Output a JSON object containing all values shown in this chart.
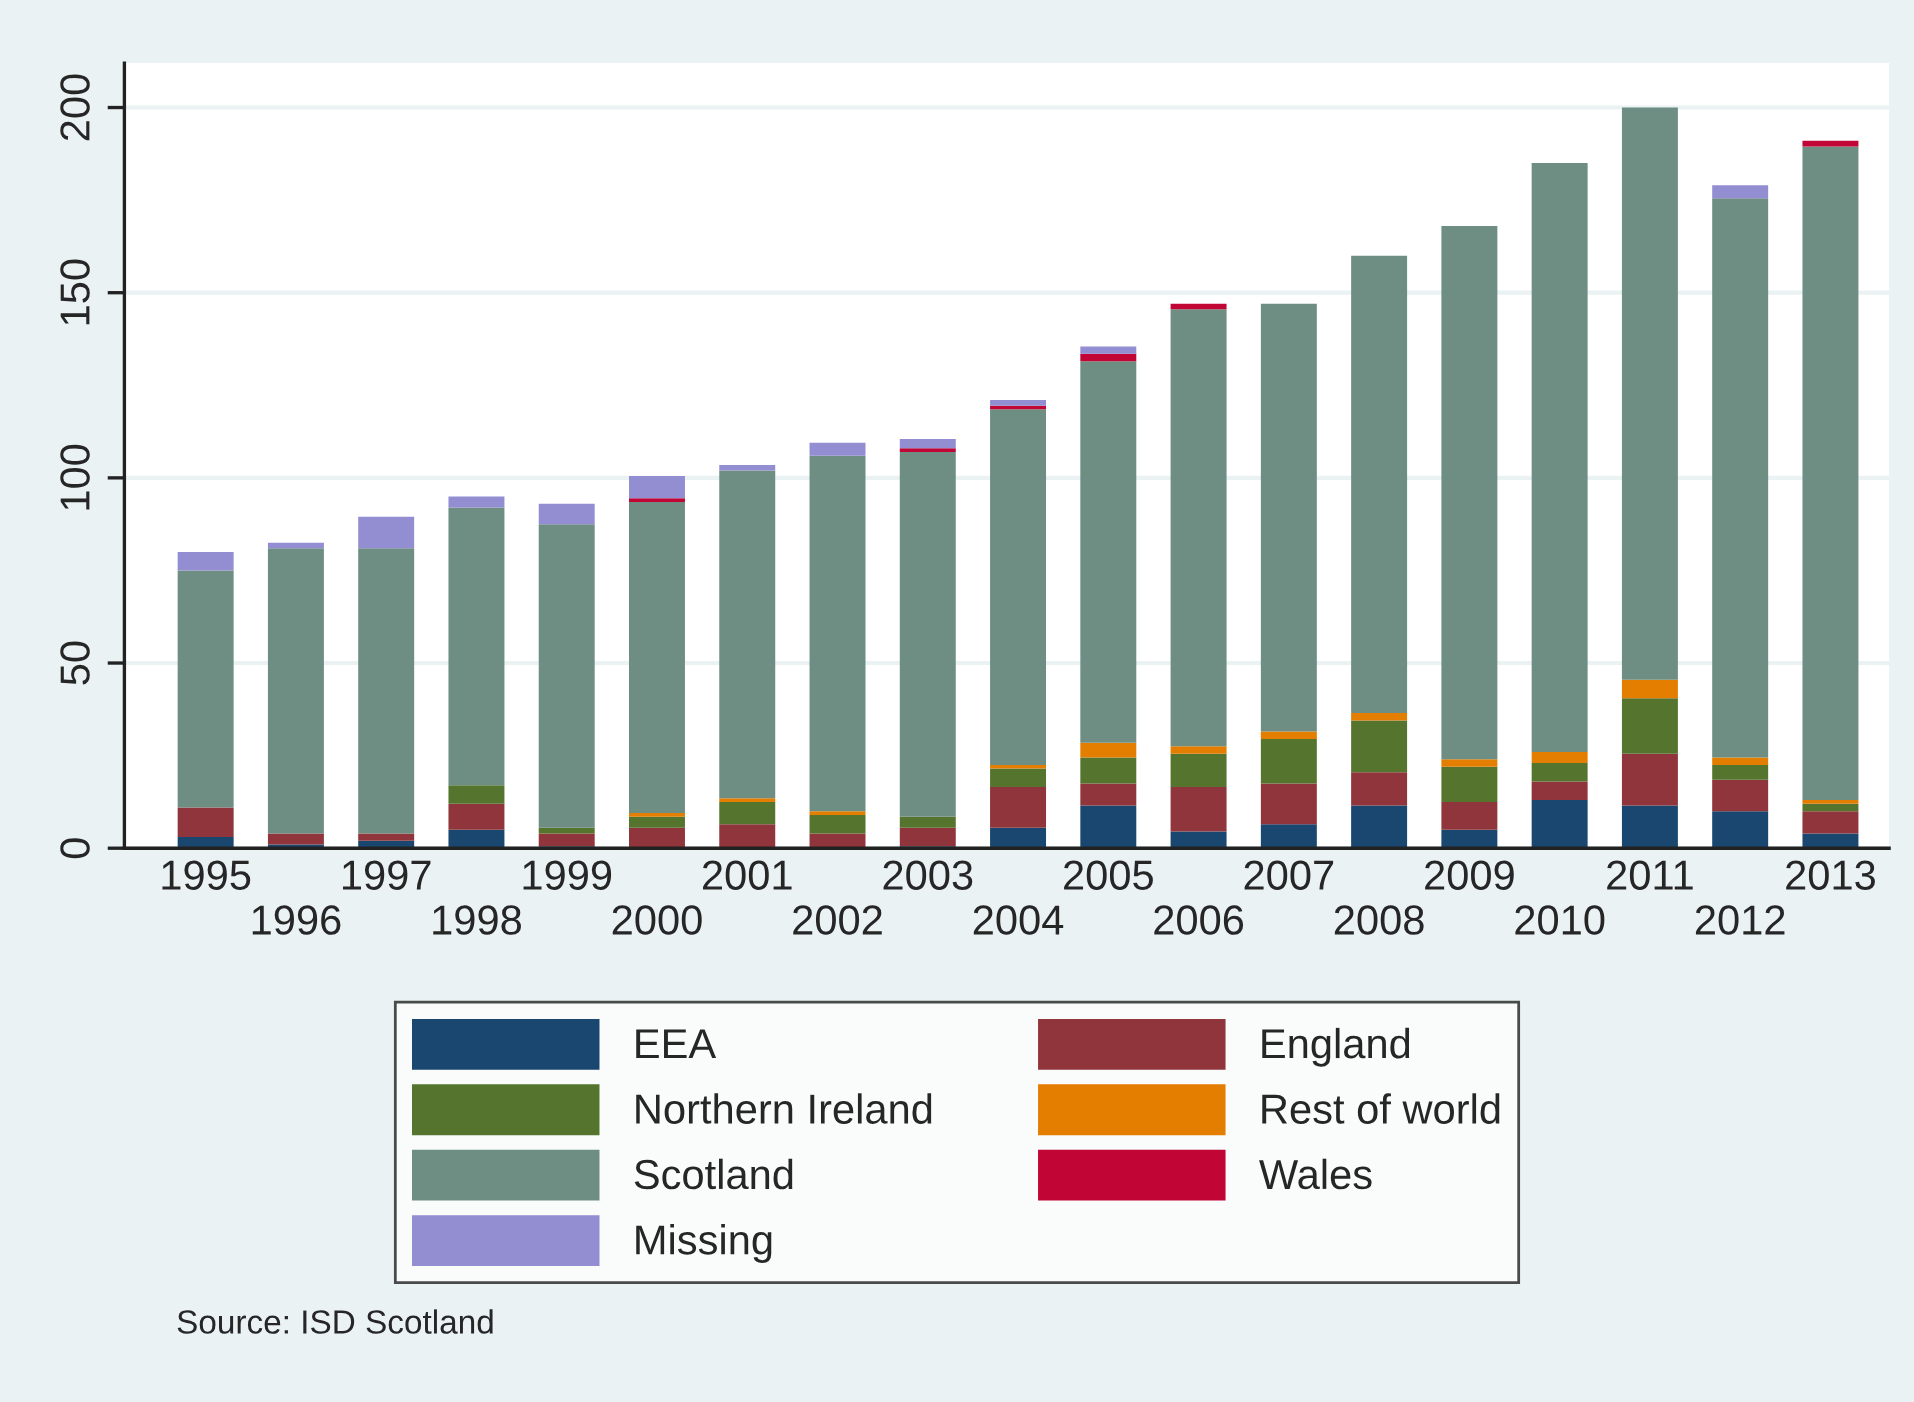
{
  "chart_data": {
    "type": "bar",
    "stacked": true,
    "categories": [
      "1995",
      "1996",
      "1997",
      "1998",
      "1999",
      "2000",
      "2001",
      "2002",
      "2003",
      "2004",
      "2005",
      "2006",
      "2007",
      "2008",
      "2009",
      "2010",
      "2011",
      "2012",
      "2013"
    ],
    "series": [
      {
        "name": "EEA",
        "color": "#1a476f",
        "values": [
          3,
          1,
          2,
          5,
          0.5,
          0,
          0,
          0,
          0.5,
          5.5,
          11.5,
          4.5,
          6.5,
          11.5,
          5,
          13,
          11.5,
          10,
          4
        ]
      },
      {
        "name": "England",
        "color": "#90353b",
        "values": [
          8,
          3,
          2,
          7,
          3.5,
          5.5,
          6.5,
          4,
          5,
          11,
          6,
          12,
          11,
          9,
          7.5,
          5,
          14,
          8.5,
          6
        ]
      },
      {
        "name": "Northern Ireland",
        "color": "#55752f",
        "values": [
          0,
          0,
          0,
          5,
          1.5,
          3,
          6,
          5,
          3,
          5,
          7,
          9,
          12,
          14,
          9.5,
          5,
          15,
          4,
          2
        ]
      },
      {
        "name": "Rest of world",
        "color": "#e37e00",
        "values": [
          0,
          0,
          0,
          0,
          0,
          1,
          1,
          1,
          0,
          1,
          4,
          2,
          2,
          2,
          2,
          3,
          5,
          2,
          1
        ]
      },
      {
        "name": "Scotland",
        "color": "#6e8e84",
        "values": [
          64,
          77,
          77,
          75,
          82,
          84,
          88.5,
          96,
          98.5,
          96,
          103,
          118,
          115.5,
          123.5,
          144,
          159,
          154.5,
          151,
          176.5
        ]
      },
      {
        "name": "Wales",
        "color": "#c10534",
        "values": [
          0,
          0,
          0,
          0,
          0,
          1,
          0,
          0,
          1,
          1,
          2,
          1.5,
          0,
          0,
          0,
          0,
          0,
          0,
          1.5
        ]
      },
      {
        "name": "Missing",
        "color": "#938dd2",
        "values": [
          5,
          1.5,
          8.5,
          3,
          5.5,
          6,
          1.5,
          3.5,
          2.5,
          1.5,
          2,
          0,
          0,
          0,
          0,
          0,
          0,
          3.5,
          0
        ]
      }
    ],
    "ylim": [
      0,
      212
    ],
    "yticks": [
      0,
      50,
      100,
      150,
      200
    ],
    "grid": "y",
    "legend": "bottom",
    "annotations": [
      "Source: ISD Scotland"
    ]
  }
}
